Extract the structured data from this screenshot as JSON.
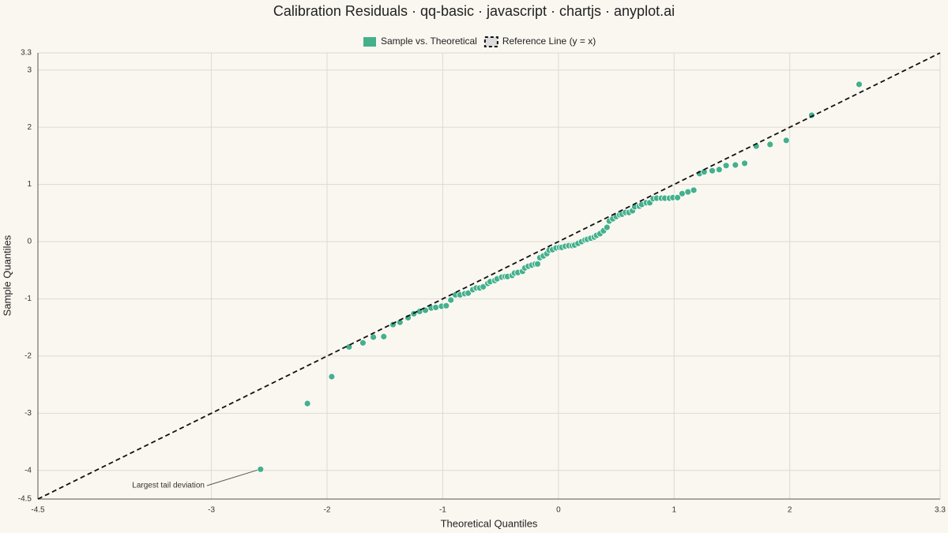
{
  "chart_data": {
    "type": "scatter",
    "title": "Calibration Residuals · qq-basic · javascript · chartjs · anyplot.ai",
    "x_label": "Theoretical Quantiles",
    "y_label": "Sample Quantiles",
    "xlim": [
      -4.5,
      3.3
    ],
    "ylim": [
      -4.5,
      3.3
    ],
    "xticks": [
      -4.5,
      -3,
      -2,
      -1,
      0,
      1,
      2,
      3.3
    ],
    "yticks": [
      -4.5,
      -4,
      -3,
      -2,
      -1,
      0,
      1,
      2,
      3,
      3.3
    ],
    "grid": true,
    "legend": "top",
    "series": [
      {
        "name": "Sample vs. Theoretical",
        "color": "#45b08c",
        "x": [
          -2.575,
          -2.17,
          -1.96,
          -1.81,
          -1.69,
          -1.6,
          -1.51,
          -1.43,
          -1.37,
          -1.3,
          -1.25,
          -1.2,
          -1.15,
          -1.1,
          -1.06,
          -1.01,
          -0.97,
          -0.93,
          -0.89,
          -0.85,
          -0.81,
          -0.78,
          -0.74,
          -0.71,
          -0.68,
          -0.65,
          -0.61,
          -0.59,
          -0.55,
          -0.53,
          -0.49,
          -0.46,
          -0.44,
          -0.4,
          -0.38,
          -0.35,
          -0.31,
          -0.29,
          -0.26,
          -0.23,
          -0.2,
          -0.18,
          -0.16,
          -0.13,
          -0.1,
          -0.08,
          -0.05,
          -0.02,
          0.01,
          0.03,
          0.06,
          0.09,
          0.12,
          0.14,
          0.17,
          0.2,
          0.23,
          0.25,
          0.28,
          0.31,
          0.33,
          0.36,
          0.39,
          0.42,
          0.44,
          0.47,
          0.5,
          0.53,
          0.55,
          0.58,
          0.61,
          0.64,
          0.66,
          0.7,
          0.72,
          0.76,
          0.79,
          0.82,
          0.85,
          0.89,
          0.92,
          0.96,
          0.99,
          1.03,
          1.07,
          1.12,
          1.17,
          1.22,
          1.26,
          1.33,
          1.39,
          1.45,
          1.53,
          1.61,
          1.71,
          1.83,
          1.97,
          2.19,
          2.6
        ],
        "values": [
          -3.98,
          -2.83,
          -2.36,
          -1.84,
          -1.77,
          -1.67,
          -1.66,
          -1.45,
          -1.41,
          -1.33,
          -1.26,
          -1.22,
          -1.2,
          -1.16,
          -1.15,
          -1.13,
          -1.12,
          -1.02,
          -0.93,
          -0.93,
          -0.91,
          -0.9,
          -0.84,
          -0.81,
          -0.81,
          -0.79,
          -0.73,
          -0.7,
          -0.68,
          -0.65,
          -0.62,
          -0.61,
          -0.61,
          -0.59,
          -0.55,
          -0.54,
          -0.52,
          -0.46,
          -0.43,
          -0.41,
          -0.39,
          -0.39,
          -0.28,
          -0.25,
          -0.21,
          -0.15,
          -0.14,
          -0.11,
          -0.1,
          -0.1,
          -0.08,
          -0.07,
          -0.07,
          -0.06,
          -0.03,
          0,
          0.03,
          0.04,
          0.06,
          0.08,
          0.11,
          0.14,
          0.19,
          0.25,
          0.36,
          0.4,
          0.44,
          0.47,
          0.48,
          0.51,
          0.51,
          0.54,
          0.61,
          0.62,
          0.65,
          0.68,
          0.68,
          0.75,
          0.76,
          0.76,
          0.76,
          0.76,
          0.77,
          0.77,
          0.84,
          0.87,
          0.9,
          1.19,
          1.22,
          1.24,
          1.26,
          1.33,
          1.34,
          1.37,
          1.67,
          1.7,
          1.77,
          2.21,
          2.75
        ]
      },
      {
        "name": "Reference Line (y = x)",
        "color": "#111111",
        "type": "line",
        "x": [
          -4.5,
          3.3
        ],
        "values": [
          -4.5,
          3.3
        ]
      }
    ],
    "annotations": [
      {
        "text": "Largest tail deviation",
        "x": -2.575,
        "y": -3.98
      }
    ]
  }
}
